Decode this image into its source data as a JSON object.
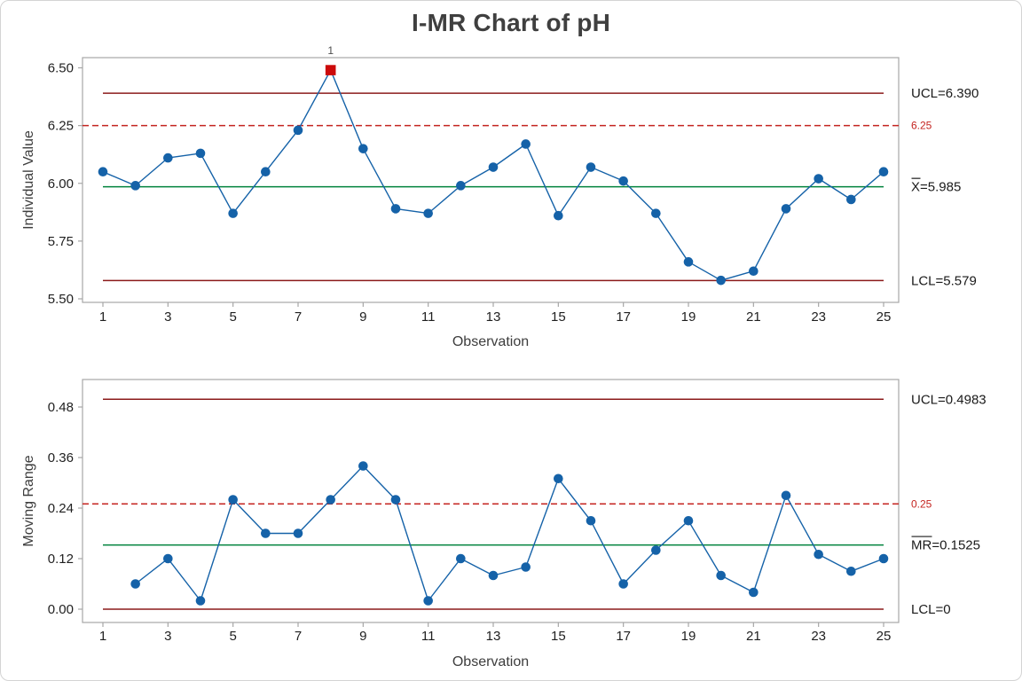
{
  "title": "I-MR Chart of pH",
  "colors": {
    "series_blue": "#1562a8",
    "limit_red": "#8b1a1a",
    "spec_red": "#c42420",
    "center_green": "#00823c",
    "ooc_red": "#cc0a0a",
    "frame_gray": "#a6a6a6",
    "flag_gray": "#4d4d4d"
  },
  "chart_data": [
    {
      "type": "line",
      "name": "individuals",
      "ylabel": "Individual Value",
      "xlabel": "Observation",
      "x": [
        1,
        2,
        3,
        4,
        5,
        6,
        7,
        8,
        9,
        10,
        11,
        12,
        13,
        14,
        15,
        16,
        17,
        18,
        19,
        20,
        21,
        22,
        23,
        24,
        25
      ],
      "values": [
        6.05,
        5.99,
        6.11,
        6.13,
        5.87,
        6.05,
        6.23,
        6.49,
        6.15,
        5.89,
        5.87,
        5.99,
        6.07,
        6.17,
        5.86,
        6.07,
        6.01,
        5.87,
        5.66,
        5.58,
        5.62,
        5.89,
        6.02,
        5.93,
        6.05
      ],
      "xticks": [
        1,
        3,
        5,
        7,
        9,
        11,
        13,
        15,
        17,
        19,
        21,
        23,
        25
      ],
      "yticks": [
        5.5,
        5.75,
        6.0,
        6.25,
        6.5
      ],
      "ytick_labels": [
        "5.50",
        "5.75",
        "6.00",
        "6.25",
        "6.50"
      ],
      "ylim": [
        5.44,
        6.56
      ],
      "lines": {
        "ucl": {
          "value": 6.39,
          "label": "UCL=6.390"
        },
        "spec": {
          "value": 6.25,
          "label": "6.25"
        },
        "center": {
          "value": 5.985,
          "label": "X=5.985",
          "bar_chars": 1
        },
        "lcl": {
          "value": 5.579,
          "label": "LCL=5.579"
        }
      },
      "out_of_control": [
        {
          "x": 8,
          "flag": "1"
        }
      ]
    },
    {
      "type": "line",
      "name": "moving_range",
      "ylabel": "Moving Range",
      "xlabel": "Observation",
      "x": [
        2,
        3,
        4,
        5,
        6,
        7,
        8,
        9,
        10,
        11,
        12,
        13,
        14,
        15,
        16,
        17,
        18,
        19,
        20,
        21,
        22,
        23,
        24,
        25
      ],
      "values": [
        0.06,
        0.12,
        0.02,
        0.26,
        0.18,
        0.18,
        0.26,
        0.34,
        0.26,
        0.02,
        0.12,
        0.08,
        0.1,
        0.31,
        0.21,
        0.06,
        0.14,
        0.21,
        0.08,
        0.04,
        0.27,
        0.13,
        0.09,
        0.12
      ],
      "xticks": [
        1,
        3,
        5,
        7,
        9,
        11,
        13,
        15,
        17,
        19,
        21,
        23,
        25
      ],
      "yticks": [
        0,
        0.12,
        0.24,
        0.36,
        0.48
      ],
      "ytick_labels": [
        "0.00",
        "0.12",
        "0.24",
        "0.36",
        "0.48"
      ],
      "ylim": [
        -0.03,
        0.545
      ],
      "lines": {
        "ucl": {
          "value": 0.4983,
          "label": "UCL=0.4983"
        },
        "spec": {
          "value": 0.25,
          "label": "0.25"
        },
        "center": {
          "value": 0.1525,
          "label": "MR=0.1525",
          "bar_chars": 2
        },
        "lcl": {
          "value": 0,
          "label": "LCL=0"
        }
      },
      "out_of_control": []
    }
  ]
}
